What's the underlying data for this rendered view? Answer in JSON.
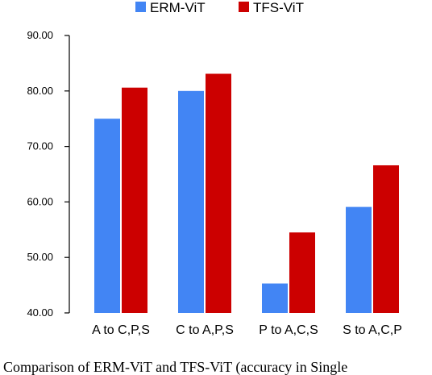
{
  "chart_data": {
    "type": "bar",
    "categories": [
      "A to C,P,S",
      "C to A,P,S",
      "P to A,C,S",
      "S to A,C,P"
    ],
    "series": [
      {
        "name": "ERM-ViT",
        "color": "#4285f4",
        "values": [
          75.0,
          80.0,
          45.3,
          59.1
        ]
      },
      {
        "name": "TFS-ViT",
        "color": "#cc0000",
        "values": [
          80.6,
          83.1,
          54.5,
          66.6
        ]
      }
    ],
    "ylim": [
      40,
      90
    ],
    "yticks": [
      "40.00",
      "50.00",
      "60.00",
      "70.00",
      "80.00",
      "90.00"
    ],
    "title": "",
    "xlabel": "",
    "ylabel": "",
    "legend_position": "top",
    "grid": false
  },
  "caption": "Comparison of ERM-ViT and TFS-ViT (accuracy in Single"
}
